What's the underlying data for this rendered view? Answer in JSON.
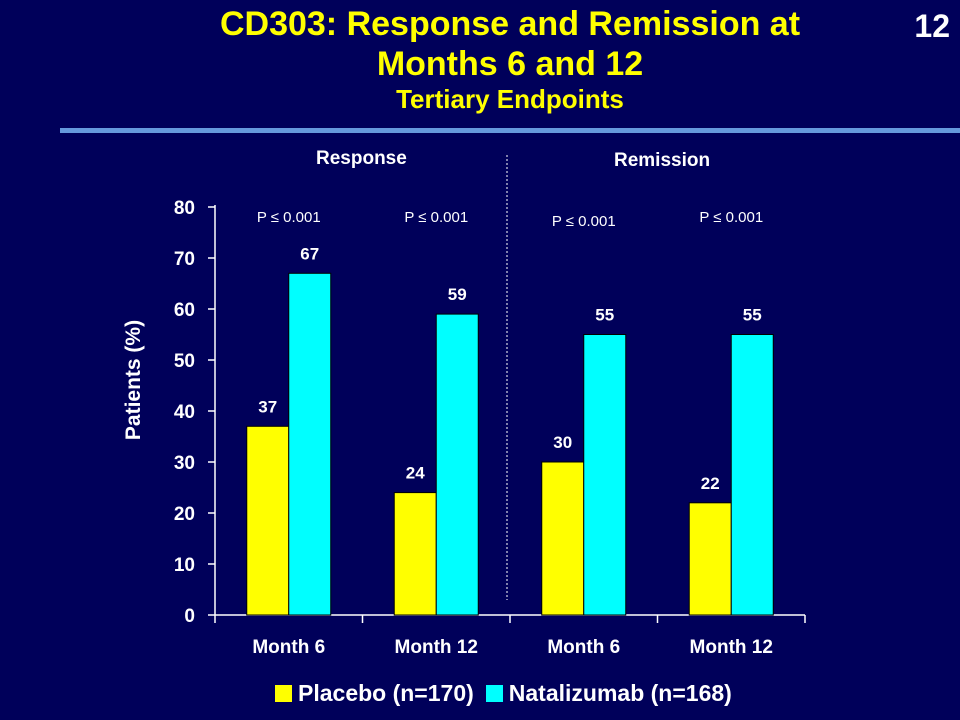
{
  "slide": {
    "title_line1": "CD303: Response and Remission at",
    "title_line2": "Months 6 and 12",
    "subtitle": "Tertiary Endpoints",
    "page_number": "12"
  },
  "colors": {
    "background": "#00005a",
    "placebo": "#ffff00",
    "natalizumab": "#00ffff",
    "title": "#ffff00",
    "rule": "#6699dd"
  },
  "chart_data": {
    "type": "bar",
    "title": "",
    "ylabel": "Patients (%)",
    "xlabel": "",
    "ylim": [
      0,
      80
    ],
    "yticks": [
      0,
      10,
      20,
      30,
      40,
      50,
      60,
      70,
      80
    ],
    "groups": [
      "Response",
      "Remission"
    ],
    "categories": [
      "Month 6",
      "Month 12",
      "Month 6",
      "Month 12"
    ],
    "series": [
      {
        "name": "Placebo (n=170)",
        "values": [
          37,
          24,
          30,
          22
        ]
      },
      {
        "name": "Natalizumab (n=168)",
        "values": [
          67,
          59,
          55,
          55
        ]
      }
    ],
    "p_values": [
      "P ≤ 0.001",
      "P ≤ 0.001",
      "P ≤ 0.001",
      "P ≤ 0.001"
    ],
    "legend_position": "bottom",
    "grid": false
  }
}
